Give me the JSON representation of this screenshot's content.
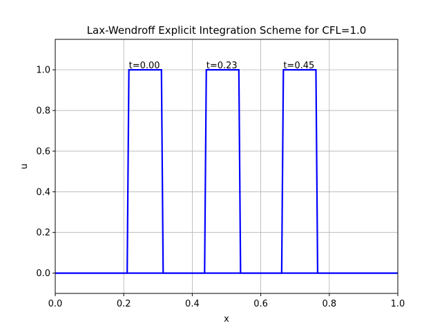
{
  "chart_data": {
    "type": "line",
    "title": "Lax-Wendroff Explicit Integration Scheme for  CFL=1.0",
    "xlabel": "x",
    "ylabel": "u",
    "xlim": [
      0.0,
      1.0
    ],
    "ylim": [
      -0.1,
      1.15
    ],
    "xticks": [
      0.0,
      0.2,
      0.4,
      0.6,
      0.8,
      1.0
    ],
    "xtick_labels": [
      "0.0",
      "0.2",
      "0.4",
      "0.6",
      "0.8",
      "1.0"
    ],
    "yticks": [
      0.0,
      0.2,
      0.4,
      0.6,
      0.8,
      1.0
    ],
    "ytick_labels": [
      "0.0",
      "0.2",
      "0.4",
      "0.6",
      "0.8",
      "1.0"
    ],
    "grid": true,
    "line_color": "#0000ff",
    "series": [
      {
        "x": [
          0.0,
          0.21,
          0.215,
          0.31,
          0.315,
          1.0
        ],
        "y": [
          0.0,
          0.0,
          1.0,
          1.0,
          0.0,
          0.0
        ]
      },
      {
        "x": [
          0.0,
          0.436,
          0.441,
          0.536,
          0.541,
          1.0
        ],
        "y": [
          0.0,
          0.0,
          1.0,
          1.0,
          0.0,
          0.0
        ]
      },
      {
        "x": [
          0.0,
          0.661,
          0.666,
          0.761,
          0.766,
          1.0
        ],
        "y": [
          0.0,
          0.0,
          1.0,
          1.0,
          0.0,
          0.0
        ]
      }
    ],
    "annotations": [
      {
        "text": "t=0.00",
        "x": 0.215,
        "y": 1.0
      },
      {
        "text": "t=0.23",
        "x": 0.441,
        "y": 1.0
      },
      {
        "text": "t=0.45",
        "x": 0.666,
        "y": 1.0
      }
    ]
  }
}
